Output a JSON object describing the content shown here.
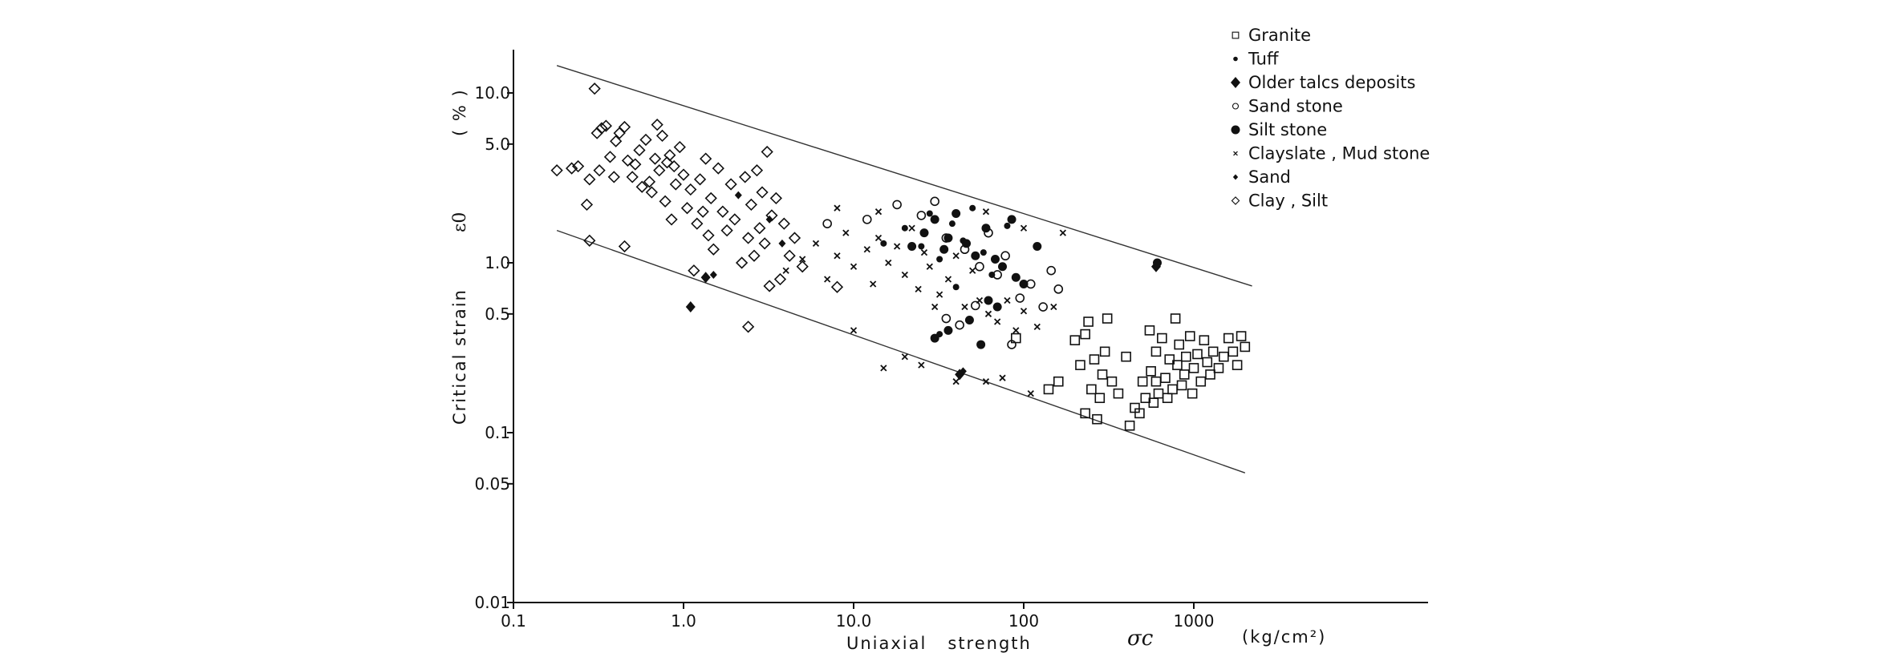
{
  "chart_data": {
    "type": "scatter",
    "x_scale": "log",
    "y_scale": "log",
    "xlim": [
      0.1,
      10000
    ],
    "ylim": [
      0.01,
      20
    ],
    "x_ticks": [
      {
        "value": 0.1,
        "label": "0.1"
      },
      {
        "value": 1,
        "label": "1.0"
      },
      {
        "value": 10,
        "label": "10.0"
      },
      {
        "value": 100,
        "label": "100"
      },
      {
        "value": 1000,
        "label": "1000"
      }
    ],
    "y_ticks": [
      {
        "value": 10,
        "label": "10.0"
      },
      {
        "value": 5,
        "label": "5.0"
      },
      {
        "value": 1,
        "label": "1.0"
      },
      {
        "value": 0.5,
        "label": "0.5"
      },
      {
        "value": 0.1,
        "label": "0.1"
      },
      {
        "value": 0.05,
        "label": "0.05"
      },
      {
        "value": 0.01,
        "label": "0.01"
      }
    ],
    "xlabel": "Uniaxial   strength",
    "xlabel_symbol": "σc",
    "xlabel_unit": "(kg/cm²)",
    "ylabel": "Critical   strain",
    "ylabel_symbol": "ε0",
    "ylabel_unit": "( % )",
    "legend_position": "top-right",
    "grid": false,
    "bound_lines": [
      {
        "name": "upper",
        "points": [
          [
            0.18,
            14.5
          ],
          [
            2200,
            0.73
          ]
        ]
      },
      {
        "name": "lower",
        "points": [
          [
            0.18,
            1.55
          ],
          [
            2000,
            0.058
          ]
        ]
      }
    ],
    "series": [
      {
        "name": "Granite",
        "marker": "square-open",
        "points": [
          [
            200,
            0.35
          ],
          [
            215,
            0.25
          ],
          [
            230,
            0.38
          ],
          [
            240,
            0.45
          ],
          [
            250,
            0.18
          ],
          [
            260,
            0.27
          ],
          [
            270,
            0.12
          ],
          [
            280,
            0.16
          ],
          [
            290,
            0.22
          ],
          [
            300,
            0.3
          ],
          [
            310,
            0.47
          ],
          [
            330,
            0.2
          ],
          [
            360,
            0.17
          ],
          [
            400,
            0.28
          ],
          [
            420,
            0.11
          ],
          [
            450,
            0.14
          ],
          [
            480,
            0.13
          ],
          [
            500,
            0.2
          ],
          [
            520,
            0.16
          ],
          [
            550,
            0.4
          ],
          [
            560,
            0.23
          ],
          [
            580,
            0.15
          ],
          [
            600,
            0.3
          ],
          [
            620,
            0.17
          ],
          [
            650,
            0.36
          ],
          [
            680,
            0.21
          ],
          [
            700,
            0.16
          ],
          [
            720,
            0.27
          ],
          [
            750,
            0.18
          ],
          [
            780,
            0.47
          ],
          [
            800,
            0.25
          ],
          [
            820,
            0.33
          ],
          [
            850,
            0.19
          ],
          [
            880,
            0.22
          ],
          [
            900,
            0.28
          ],
          [
            950,
            0.37
          ],
          [
            980,
            0.17
          ],
          [
            1000,
            0.24
          ],
          [
            1050,
            0.29
          ],
          [
            1100,
            0.2
          ],
          [
            1150,
            0.35
          ],
          [
            1200,
            0.26
          ],
          [
            1250,
            0.22
          ],
          [
            1300,
            0.3
          ],
          [
            1400,
            0.24
          ],
          [
            1500,
            0.28
          ],
          [
            1600,
            0.36
          ],
          [
            1700,
            0.3
          ],
          [
            1800,
            0.25
          ],
          [
            1900,
            0.37
          ],
          [
            2000,
            0.32
          ],
          [
            160,
            0.2
          ],
          [
            90,
            0.36
          ],
          [
            140,
            0.18
          ],
          [
            230,
            0.13
          ],
          [
            600,
            0.2
          ]
        ]
      },
      {
        "name": "Tuff",
        "marker": "dot-small",
        "points": [
          [
            15,
            1.3
          ],
          [
            20,
            1.6
          ],
          [
            25,
            1.25
          ],
          [
            28,
            1.95
          ],
          [
            32,
            1.05
          ],
          [
            38,
            1.7
          ],
          [
            44,
            1.35
          ],
          [
            50,
            2.1
          ],
          [
            58,
            1.15
          ],
          [
            65,
            0.85
          ],
          [
            80,
            1.65
          ],
          [
            32,
            0.38
          ],
          [
            40,
            0.72
          ]
        ]
      },
      {
        "name": "Older talcs deposits",
        "marker": "diamond-filled",
        "points": [
          [
            1.1,
            0.55
          ],
          [
            1.35,
            0.82
          ],
          [
            42,
            0.22
          ],
          [
            600,
            0.95
          ]
        ]
      },
      {
        "name": "Sand stone",
        "marker": "circle-open",
        "points": [
          [
            7,
            1.7
          ],
          [
            12,
            1.8
          ],
          [
            18,
            2.2
          ],
          [
            25,
            1.9
          ],
          [
            30,
            2.3
          ],
          [
            35,
            1.4
          ],
          [
            45,
            1.2
          ],
          [
            55,
            0.95
          ],
          [
            62,
            1.5
          ],
          [
            70,
            0.85
          ],
          [
            78,
            1.1
          ],
          [
            95,
            0.62
          ],
          [
            110,
            0.75
          ],
          [
            130,
            0.55
          ],
          [
            145,
            0.9
          ],
          [
            160,
            0.7
          ],
          [
            35,
            0.47
          ],
          [
            42,
            0.43
          ],
          [
            52,
            0.56
          ],
          [
            85,
            0.33
          ]
        ]
      },
      {
        "name": "Silt stone",
        "marker": "dot-large",
        "points": [
          [
            22,
            1.25
          ],
          [
            26,
            1.5
          ],
          [
            30,
            1.8
          ],
          [
            34,
            1.2
          ],
          [
            36,
            1.4
          ],
          [
            40,
            1.95
          ],
          [
            46,
            1.3
          ],
          [
            52,
            1.1
          ],
          [
            60,
            1.6
          ],
          [
            68,
            1.05
          ],
          [
            75,
            0.95
          ],
          [
            85,
            1.8
          ],
          [
            90,
            0.82
          ],
          [
            100,
            0.75
          ],
          [
            120,
            1.25
          ],
          [
            30,
            0.36
          ],
          [
            36,
            0.4
          ],
          [
            48,
            0.46
          ],
          [
            56,
            0.33
          ],
          [
            62,
            0.6
          ],
          [
            70,
            0.55
          ],
          [
            610,
            1.0
          ]
        ]
      },
      {
        "name": "Clayslate , Mud stone",
        "marker": "cross-small",
        "points": [
          [
            4,
            0.9
          ],
          [
            5,
            1.05
          ],
          [
            6,
            1.3
          ],
          [
            7,
            0.8
          ],
          [
            8,
            1.1
          ],
          [
            9,
            1.5
          ],
          [
            10,
            0.95
          ],
          [
            12,
            1.2
          ],
          [
            13,
            0.75
          ],
          [
            14,
            1.4
          ],
          [
            16,
            1.0
          ],
          [
            18,
            1.25
          ],
          [
            20,
            0.85
          ],
          [
            22,
            1.6
          ],
          [
            24,
            0.7
          ],
          [
            26,
            1.15
          ],
          [
            28,
            0.95
          ],
          [
            32,
            0.65
          ],
          [
            36,
            0.8
          ],
          [
            40,
            1.1
          ],
          [
            45,
            0.55
          ],
          [
            50,
            0.9
          ],
          [
            55,
            0.6
          ],
          [
            62,
            0.5
          ],
          [
            70,
            0.45
          ],
          [
            80,
            0.6
          ],
          [
            90,
            0.4
          ],
          [
            100,
            0.52
          ],
          [
            120,
            0.42
          ],
          [
            150,
            0.55
          ],
          [
            8,
            2.1
          ],
          [
            14,
            2.0
          ],
          [
            60,
            2.0
          ],
          [
            100,
            1.6
          ],
          [
            170,
            1.5
          ],
          [
            25,
            0.25
          ],
          [
            40,
            0.2
          ],
          [
            60,
            0.2
          ],
          [
            75,
            0.21
          ],
          [
            110,
            0.17
          ],
          [
            15,
            0.24
          ],
          [
            20,
            0.28
          ],
          [
            10,
            0.4
          ],
          [
            30,
            0.55
          ]
        ]
      },
      {
        "name": "Sand",
        "marker": "diamond-small",
        "points": [
          [
            1.5,
            0.85
          ],
          [
            2.1,
            2.5
          ],
          [
            3.2,
            1.8
          ],
          [
            3.8,
            1.3
          ],
          [
            44,
            0.23
          ]
        ]
      },
      {
        "name": "Clay , Silt",
        "marker": "diamond-open",
        "points": [
          [
            0.18,
            3.5
          ],
          [
            0.22,
            3.6
          ],
          [
            0.24,
            3.7
          ],
          [
            0.27,
            2.2
          ],
          [
            0.28,
            3.1
          ],
          [
            0.3,
            10.6
          ],
          [
            0.31,
            5.8
          ],
          [
            0.32,
            3.5
          ],
          [
            0.33,
            6.2
          ],
          [
            0.35,
            6.4
          ],
          [
            0.37,
            4.2
          ],
          [
            0.39,
            3.2
          ],
          [
            0.4,
            5.2
          ],
          [
            0.42,
            5.8
          ],
          [
            0.45,
            6.3
          ],
          [
            0.47,
            4.0
          ],
          [
            0.5,
            3.2
          ],
          [
            0.52,
            3.8
          ],
          [
            0.55,
            4.6
          ],
          [
            0.57,
            2.8
          ],
          [
            0.6,
            5.3
          ],
          [
            0.63,
            3.0
          ],
          [
            0.65,
            2.6
          ],
          [
            0.68,
            4.1
          ],
          [
            0.7,
            6.5
          ],
          [
            0.72,
            3.5
          ],
          [
            0.75,
            5.6
          ],
          [
            0.78,
            2.3
          ],
          [
            0.8,
            3.9
          ],
          [
            0.83,
            4.3
          ],
          [
            0.85,
            1.8
          ],
          [
            0.88,
            3.7
          ],
          [
            0.9,
            2.9
          ],
          [
            0.95,
            4.8
          ],
          [
            1.0,
            3.3
          ],
          [
            1.05,
            2.1
          ],
          [
            1.1,
            2.7
          ],
          [
            1.15,
            0.9
          ],
          [
            1.2,
            1.7
          ],
          [
            1.25,
            3.1
          ],
          [
            1.3,
            2.0
          ],
          [
            1.35,
            4.1
          ],
          [
            1.4,
            1.45
          ],
          [
            1.45,
            2.4
          ],
          [
            1.5,
            1.2
          ],
          [
            1.6,
            3.6
          ],
          [
            1.7,
            2.0
          ],
          [
            1.8,
            1.55
          ],
          [
            1.9,
            2.9
          ],
          [
            2.0,
            1.8
          ],
          [
            2.2,
            1.0
          ],
          [
            2.3,
            3.2
          ],
          [
            2.4,
            1.4
          ],
          [
            2.5,
            2.2
          ],
          [
            2.6,
            1.1
          ],
          [
            2.7,
            3.5
          ],
          [
            2.8,
            1.6
          ],
          [
            2.9,
            2.6
          ],
          [
            3.0,
            1.3
          ],
          [
            3.1,
            4.5
          ],
          [
            3.3,
            1.9
          ],
          [
            3.5,
            2.4
          ],
          [
            3.7,
            0.8
          ],
          [
            3.9,
            1.7
          ],
          [
            4.2,
            1.1
          ],
          [
            4.5,
            1.4
          ],
          [
            5.0,
            0.95
          ],
          [
            0.28,
            1.35
          ],
          [
            0.45,
            1.25
          ],
          [
            2.4,
            0.42
          ],
          [
            3.2,
            0.73
          ],
          [
            8,
            0.72
          ]
        ]
      }
    ]
  }
}
